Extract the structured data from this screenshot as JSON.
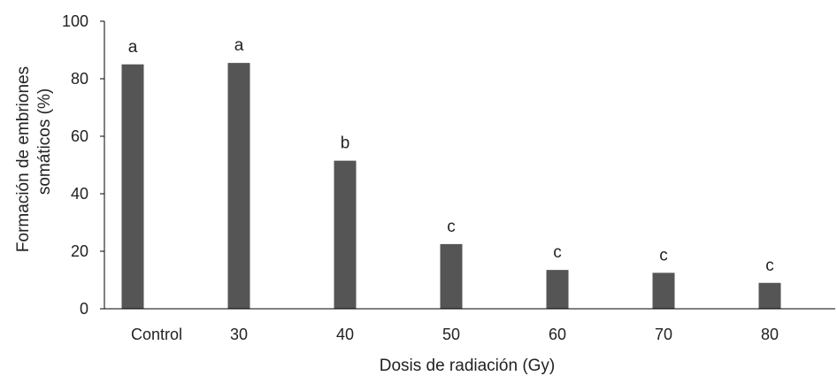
{
  "chart_data": {
    "type": "bar",
    "categories": [
      "Control",
      "30",
      "40",
      "50",
      "60",
      "70",
      "80"
    ],
    "values": [
      85,
      85.5,
      51.5,
      22.5,
      13.5,
      12.5,
      9
    ],
    "letters": [
      "a",
      "a",
      "b",
      "c",
      "c",
      "c",
      "c"
    ],
    "xlabel": "Dosis de radiación (Gy)",
    "ylabel_lines": [
      "Formación de embriones",
      "somáticos (%)"
    ],
    "ylim": [
      0,
      100
    ],
    "yticks": [
      0,
      20,
      40,
      60,
      80,
      100
    ],
    "grid": false,
    "bar_color": "#555555",
    "axis_color": "#000000"
  }
}
